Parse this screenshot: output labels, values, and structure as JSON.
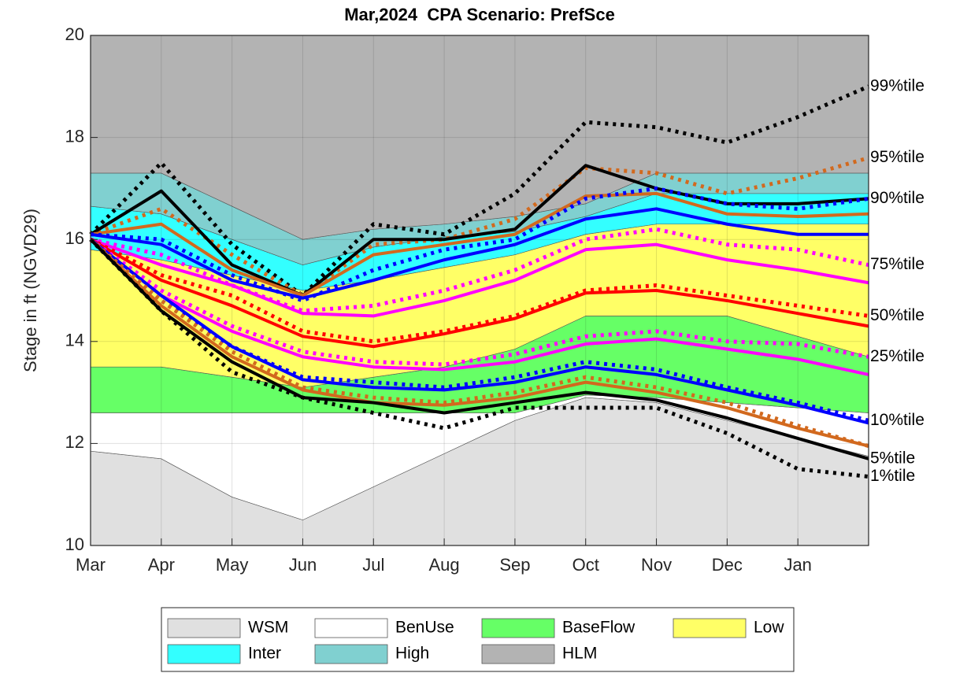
{
  "chart_data": {
    "type": "line",
    "title": "Mar,2024  CPA Scenario: PrefSce",
    "ylabel": "Stage in ft (NGVD29)",
    "x": [
      0,
      1,
      2,
      3,
      4,
      5,
      6,
      7,
      8,
      9,
      10,
      11
    ],
    "xlim": [
      0,
      11
    ],
    "xticks": [
      {
        "value": 0,
        "label": "Mar"
      },
      {
        "value": 1,
        "label": "Apr"
      },
      {
        "value": 2,
        "label": "May"
      },
      {
        "value": 3,
        "label": "Jun"
      },
      {
        "value": 4,
        "label": "Jul"
      },
      {
        "value": 5,
        "label": "Aug"
      },
      {
        "value": 6,
        "label": "Sep"
      },
      {
        "value": 7,
        "label": "Oct"
      },
      {
        "value": 8,
        "label": "Nov"
      },
      {
        "value": 9,
        "label": "Dec"
      },
      {
        "value": 10,
        "label": "Jan"
      }
    ],
    "ylim": [
      10,
      20
    ],
    "yticks": [
      10,
      12,
      14,
      16,
      18,
      20
    ],
    "grid": true,
    "bands": [
      {
        "name": "WSM",
        "color": "#e0e0e0",
        "values": [
          11.85,
          11.7,
          10.95,
          10.5,
          11.15,
          11.8,
          12.45,
          12.9,
          12.8,
          12.45,
          12.1,
          11.75
        ]
      },
      {
        "name": "BenUse",
        "color": "#ffffff",
        "values": [
          12.6,
          12.6,
          12.6,
          12.6,
          12.6,
          12.6,
          12.6,
          12.95,
          12.9,
          12.8,
          12.7,
          12.6
        ]
      },
      {
        "name": "BaseFlow",
        "color": "#66ff66",
        "values": [
          13.5,
          13.5,
          13.3,
          13.1,
          13.3,
          13.5,
          13.85,
          14.5,
          14.5,
          14.5,
          14.1,
          13.7
        ]
      },
      {
        "name": "Low",
        "color": "#ffff66",
        "values": [
          15.8,
          15.6,
          15.3,
          15.0,
          15.2,
          15.45,
          15.7,
          16.1,
          16.3,
          16.3,
          16.3,
          16.3
        ]
      },
      {
        "name": "Inter",
        "color": "#33ffff",
        "values": [
          16.65,
          16.5,
          16.0,
          15.5,
          15.85,
          16.05,
          16.15,
          16.45,
          16.9,
          16.9,
          16.9,
          16.9
        ]
      },
      {
        "name": "High",
        "color": "#80d0d0",
        "values": [
          17.3,
          17.3,
          16.65,
          16.0,
          16.2,
          16.3,
          16.45,
          16.7,
          17.3,
          17.3,
          17.3,
          17.3
        ]
      },
      {
        "name": "HLM",
        "color": "#b3b3b3",
        "values": [
          20,
          20,
          20,
          20,
          20,
          20,
          20,
          20,
          20,
          20,
          20,
          20
        ]
      }
    ],
    "series": [
      {
        "label": "99%tile",
        "color": "#000000",
        "dashed": true,
        "values": [
          16.1,
          17.5,
          15.9,
          14.9,
          16.3,
          16.1,
          16.9,
          18.3,
          18.2,
          17.9,
          18.4,
          19.0
        ]
      },
      {
        "label": "95%tile",
        "color": "#d2691e",
        "dashed": true,
        "values": [
          16.1,
          16.6,
          15.7,
          14.9,
          15.9,
          16.0,
          16.4,
          17.4,
          17.3,
          16.9,
          17.2,
          17.6
        ]
      },
      {
        "label": "90%tile",
        "color": "#000000",
        "dashed": false,
        "values": [
          16.1,
          16.95,
          15.5,
          14.9,
          16.0,
          16.0,
          16.2,
          17.45,
          17.0,
          16.7,
          16.7,
          16.8
        ]
      },
      {
        "color": "#d2691e",
        "dashed": false,
        "values": [
          16.1,
          16.3,
          15.4,
          14.9,
          15.7,
          15.9,
          16.1,
          16.85,
          16.9,
          16.5,
          16.45,
          16.5
        ]
      },
      {
        "color": "#0000ff",
        "dashed": true,
        "values": [
          16.1,
          16.0,
          15.3,
          14.8,
          15.4,
          15.8,
          16.0,
          16.8,
          17.0,
          16.7,
          16.6,
          16.8
        ]
      },
      {
        "color": "#0000ff",
        "dashed": false,
        "values": [
          16.1,
          15.9,
          15.2,
          14.85,
          15.2,
          15.6,
          15.9,
          16.4,
          16.6,
          16.3,
          16.1,
          16.1
        ]
      },
      {
        "label": "75%tile",
        "color": "#ff00ff",
        "dashed": true,
        "values": [
          16.0,
          15.7,
          15.1,
          14.6,
          14.7,
          15.0,
          15.4,
          16.0,
          16.2,
          15.9,
          15.8,
          15.5
        ]
      },
      {
        "color": "#ff00ff",
        "dashed": false,
        "values": [
          16.0,
          15.5,
          15.1,
          14.55,
          14.5,
          14.8,
          15.2,
          15.8,
          15.9,
          15.6,
          15.4,
          15.15
        ]
      },
      {
        "label": "50%tile",
        "color": "#ff0000",
        "dashed": true,
        "values": [
          16.0,
          15.3,
          14.9,
          14.2,
          14.0,
          14.2,
          14.5,
          15.0,
          15.1,
          14.9,
          14.7,
          14.5
        ]
      },
      {
        "color": "#ff0000",
        "dashed": false,
        "values": [
          16.0,
          15.2,
          14.7,
          14.1,
          13.9,
          14.15,
          14.45,
          14.95,
          15.0,
          14.8,
          14.55,
          14.3
        ]
      },
      {
        "label": "25%tile",
        "color": "#ff00ff",
        "dashed": true,
        "values": [
          16.0,
          15.0,
          14.3,
          13.8,
          13.6,
          13.55,
          13.75,
          14.1,
          14.2,
          14.0,
          13.95,
          13.7
        ]
      },
      {
        "color": "#ff00ff",
        "dashed": false,
        "values": [
          16.0,
          14.9,
          14.2,
          13.7,
          13.5,
          13.45,
          13.6,
          13.95,
          14.05,
          13.85,
          13.65,
          13.35
        ]
      },
      {
        "label": "10%tile",
        "color": "#0000ff",
        "dashed": true,
        "values": [
          16.0,
          14.8,
          13.9,
          13.3,
          13.2,
          13.1,
          13.3,
          13.6,
          13.45,
          13.1,
          12.8,
          12.45
        ]
      },
      {
        "color": "#0000ff",
        "dashed": false,
        "values": [
          16.0,
          14.9,
          13.9,
          13.25,
          13.1,
          13.05,
          13.2,
          13.5,
          13.35,
          13.05,
          12.75,
          12.4
        ]
      },
      {
        "color": "#d2691e",
        "dashed": true,
        "values": [
          16.0,
          14.8,
          13.8,
          13.1,
          12.9,
          12.8,
          13.0,
          13.3,
          13.1,
          12.8,
          12.35,
          11.95
        ]
      },
      {
        "color": "#d2691e",
        "dashed": false,
        "values": [
          16.0,
          14.7,
          13.7,
          13.05,
          12.8,
          12.75,
          12.9,
          13.2,
          13.0,
          12.7,
          12.3,
          11.95
        ]
      },
      {
        "label": "5%tile",
        "color": "#000000",
        "dashed": false,
        "values": [
          16.0,
          14.6,
          13.6,
          12.9,
          12.8,
          12.6,
          12.8,
          13.0,
          12.85,
          12.5,
          12.1,
          11.7
        ]
      },
      {
        "label": "1%tile",
        "color": "#000000",
        "dashed": true,
        "values": [
          16.0,
          14.6,
          13.4,
          12.9,
          12.6,
          12.3,
          12.7,
          12.7,
          12.7,
          12.2,
          11.5,
          11.35
        ]
      }
    ]
  }
}
